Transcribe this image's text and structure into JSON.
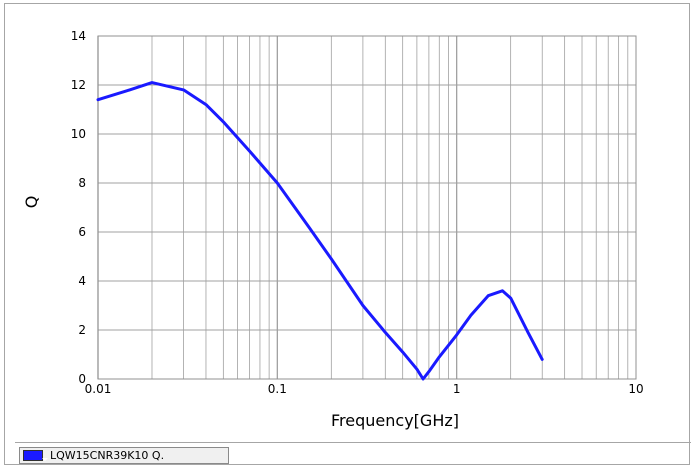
{
  "chart_data": {
    "type": "line",
    "xlabel": "Frequency[GHz]",
    "ylabel": "Q",
    "x_scale": "log",
    "xlim": [
      0.01,
      10
    ],
    "ylim": [
      0,
      14
    ],
    "x_tick_labels": [
      "0.01",
      "0.1",
      "1",
      "10"
    ],
    "y_tick_labels": [
      "0",
      "2",
      "4",
      "6",
      "8",
      "10",
      "12",
      "14"
    ],
    "grid": true,
    "legend_position": "bottom-left",
    "colors": {
      "series": "#1a1aff",
      "grid": "#a0a0a0",
      "legend_swatch": "#1a1aff"
    },
    "series": [
      {
        "name": "LQW15CNR39K10 Q.",
        "x": [
          0.01,
          0.015,
          0.02,
          0.03,
          0.04,
          0.05,
          0.07,
          0.1,
          0.15,
          0.2,
          0.3,
          0.4,
          0.5,
          0.6,
          0.65,
          0.7,
          0.8,
          1.0,
          1.2,
          1.5,
          1.8,
          2.0,
          2.5,
          3.0
        ],
        "y": [
          11.4,
          11.8,
          12.1,
          11.8,
          11.2,
          10.5,
          9.3,
          8.0,
          6.2,
          4.9,
          3.0,
          1.9,
          1.1,
          0.4,
          0.0,
          0.3,
          0.9,
          1.8,
          2.6,
          3.4,
          3.6,
          3.3,
          1.9,
          0.8
        ]
      }
    ]
  }
}
